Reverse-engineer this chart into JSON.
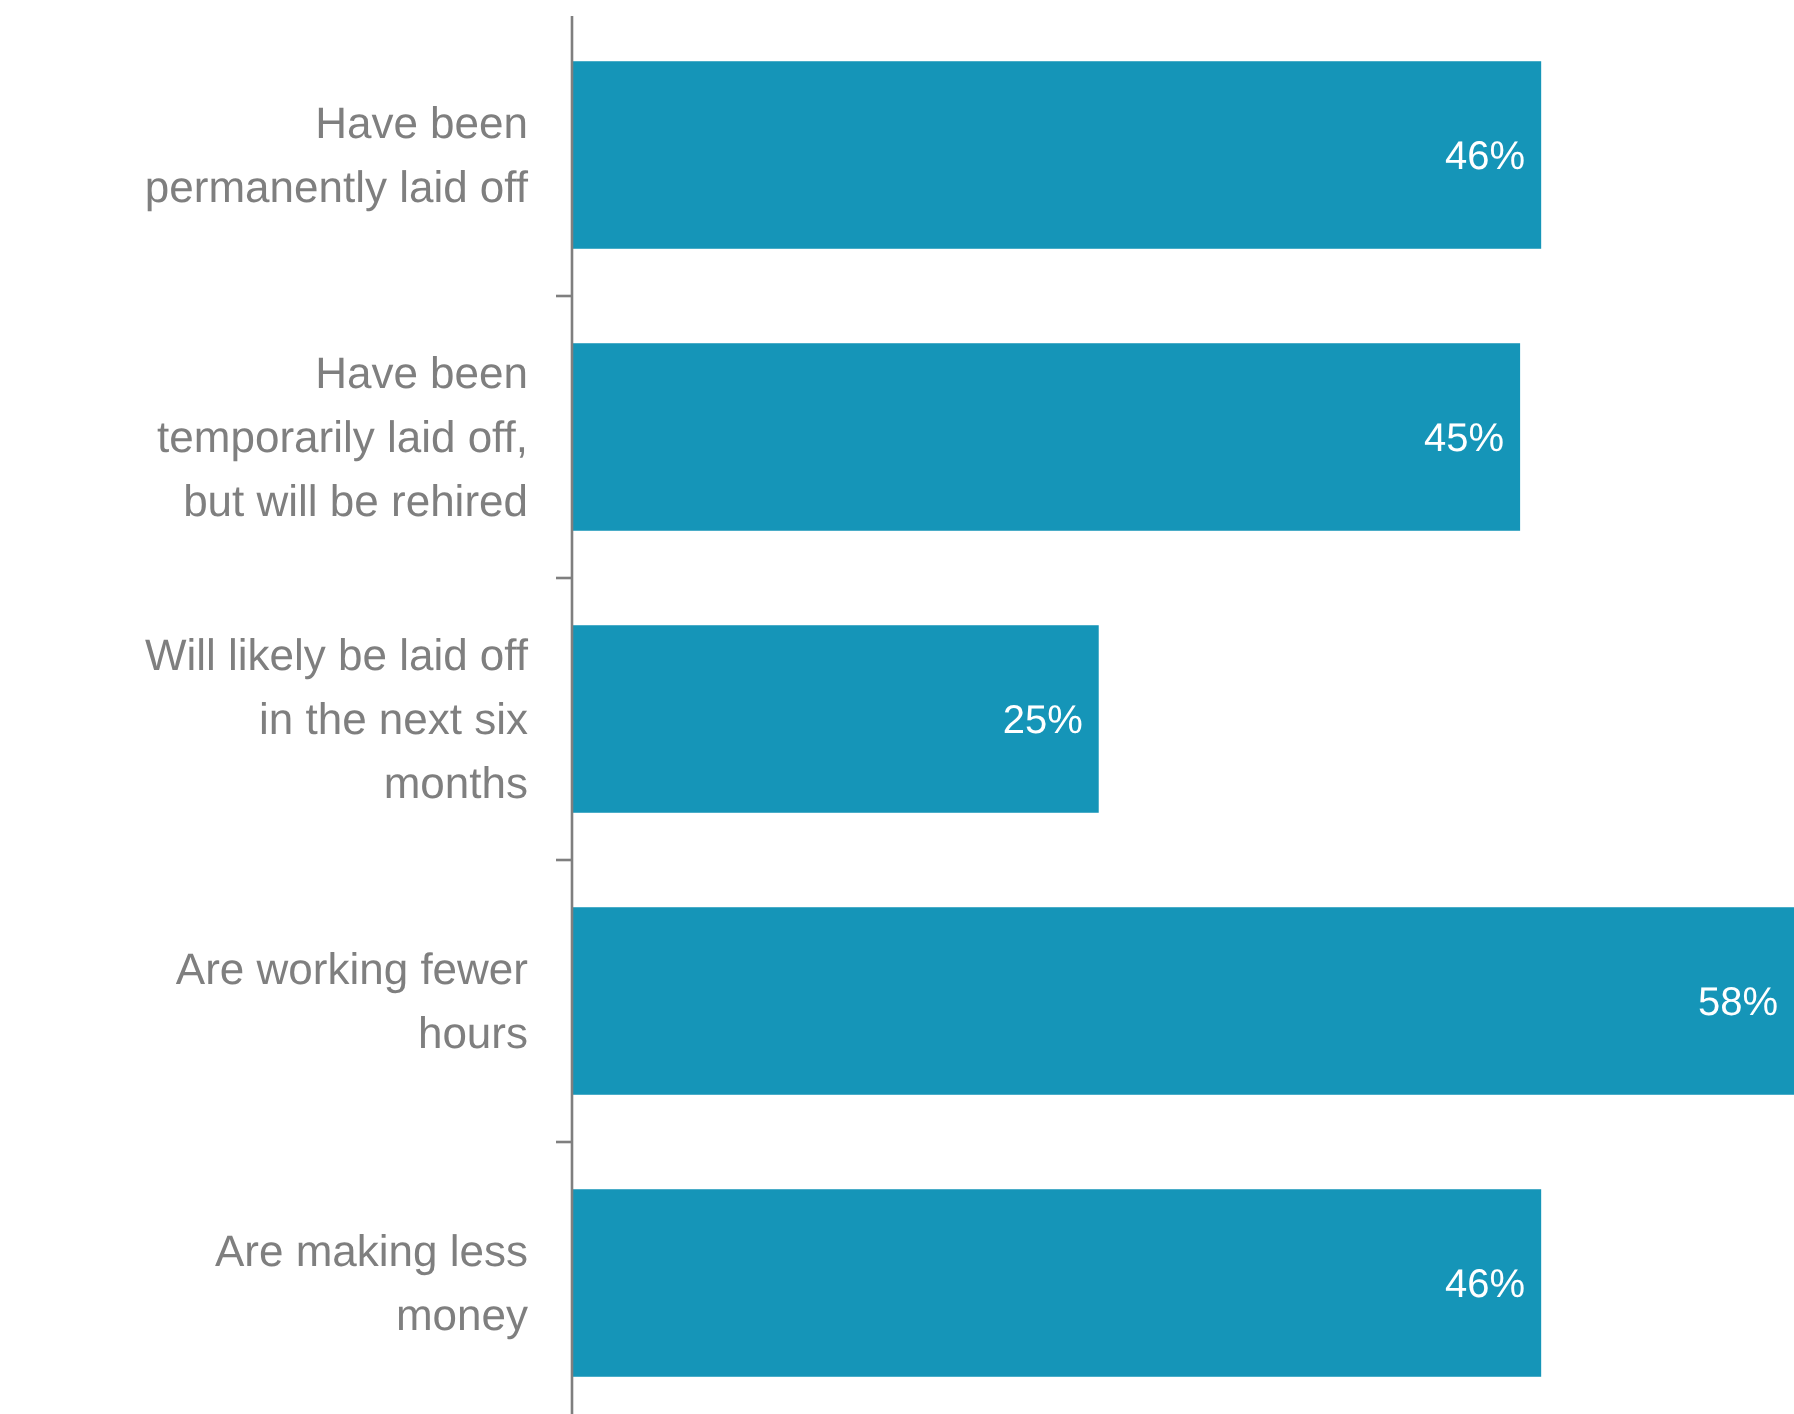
{
  "chart_data": {
    "type": "bar",
    "orientation": "horizontal",
    "categories": [
      "Have been permanently laid off",
      "Have been temporarily laid off, but will be rehired",
      "Will likely be laid off in the next six months",
      "Are working fewer hours",
      "Are making less money"
    ],
    "values": [
      46,
      45,
      25,
      58,
      46
    ],
    "value_labels": [
      "46%",
      "45%",
      "25%",
      "58%",
      "46%"
    ],
    "color": "#1595b8",
    "tick_labels": "y"
  }
}
